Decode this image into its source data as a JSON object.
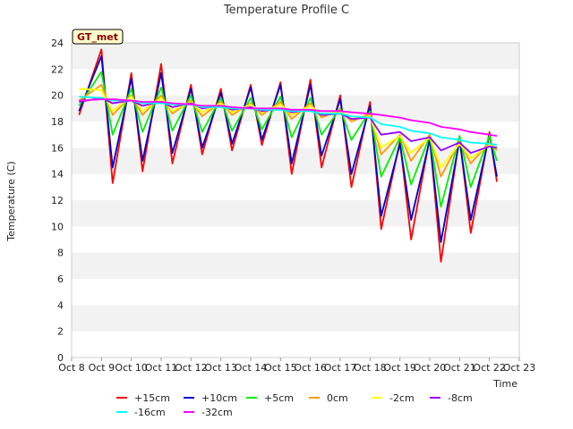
{
  "chart_data": {
    "type": "line",
    "title": "Temperature Profile C",
    "xlabel": "Time",
    "ylabel": "Temperature (C)",
    "site_label": "GT_met",
    "x_ticks": [
      "Oct 8",
      "Oct 9",
      "Oct 10",
      "Oct 11",
      "Oct 12",
      "Oct 13",
      "Oct 14",
      "Oct 15",
      "Oct 16",
      "Oct 17",
      "Oct 18",
      "Oct 19",
      "Oct 20",
      "Oct 21",
      "Oct 22",
      "Oct 23"
    ],
    "xlim": [
      "Oct 8",
      "Oct 23"
    ],
    "y_ticks": [
      0,
      2,
      4,
      6,
      8,
      10,
      12,
      14,
      16,
      18,
      20,
      22,
      24
    ],
    "ylim": [
      0,
      24
    ],
    "grid": "horizontal bands",
    "legend_position": "bottom",
    "x_dates": [
      "Oct 8 06:00",
      "Oct 9 00:00",
      "Oct 9 09:00",
      "Oct 10 00:00",
      "Oct 10 09:00",
      "Oct 11 00:00",
      "Oct 11 09:00",
      "Oct 12 00:00",
      "Oct 12 09:00",
      "Oct 13 00:00",
      "Oct 13 09:00",
      "Oct 14 00:00",
      "Oct 14 09:00",
      "Oct 15 00:00",
      "Oct 15 09:00",
      "Oct 16 00:00",
      "Oct 16 09:00",
      "Oct 17 00:00",
      "Oct 17 09:00",
      "Oct 18 00:00",
      "Oct 18 09:00",
      "Oct 19 00:00",
      "Oct 19 09:00",
      "Oct 20 00:00",
      "Oct 20 09:00",
      "Oct 21 00:00",
      "Oct 21 09:00",
      "Oct 22 00:00",
      "Oct 22 06:00"
    ],
    "series": [
      {
        "name": "+15cm",
        "color": "#ff0000",
        "values": [
          18.5,
          23.5,
          13.3,
          21.7,
          14.2,
          22.4,
          14.8,
          20.8,
          15.5,
          20.5,
          15.8,
          20.8,
          16.2,
          21.0,
          14.0,
          21.2,
          14.5,
          20.0,
          13.0,
          19.5,
          9.8,
          16.5,
          9.0,
          16.8,
          7.3,
          16.8,
          9.5,
          17.2,
          13.4
        ]
      },
      {
        "name": "+10cm",
        "color": "#0000cc",
        "values": [
          18.8,
          23.0,
          14.5,
          21.3,
          15.0,
          21.7,
          15.6,
          20.5,
          16.0,
          20.2,
          16.3,
          20.6,
          16.6,
          20.8,
          14.8,
          20.8,
          15.4,
          19.7,
          14.0,
          19.2,
          10.8,
          16.3,
          10.5,
          16.6,
          8.8,
          16.6,
          10.5,
          17.0,
          13.8
        ]
      },
      {
        "name": "+5cm",
        "color": "#00ee00",
        "values": [
          19.2,
          21.8,
          17.0,
          20.5,
          17.2,
          20.6,
          17.3,
          20.0,
          17.2,
          19.8,
          17.3,
          19.8,
          17.4,
          19.9,
          16.8,
          19.8,
          17.0,
          19.0,
          16.6,
          18.8,
          13.8,
          16.8,
          13.2,
          16.9,
          11.5,
          16.9,
          13.0,
          16.9,
          15.0
        ]
      },
      {
        "name": "0cm",
        "color": "#ff9900",
        "values": [
          19.6,
          20.8,
          18.5,
          20.0,
          18.5,
          20.0,
          18.6,
          19.6,
          18.4,
          19.5,
          18.5,
          19.4,
          18.5,
          19.5,
          18.2,
          19.4,
          18.3,
          18.9,
          18.0,
          18.6,
          15.5,
          17.0,
          15.0,
          17.0,
          13.8,
          16.5,
          14.8,
          16.4,
          15.8
        ]
      },
      {
        "name": "-2cm",
        "color": "#ffff00",
        "values": [
          20.5,
          20.4,
          18.8,
          19.9,
          18.8,
          19.8,
          18.8,
          19.5,
          18.7,
          19.4,
          18.7,
          19.3,
          18.7,
          19.3,
          18.5,
          19.2,
          18.5,
          18.8,
          18.2,
          18.4,
          16.0,
          16.9,
          15.6,
          16.8,
          14.5,
          16.3,
          15.2,
          16.2,
          16.0
        ]
      },
      {
        "name": "-8cm",
        "color": "#9900ff",
        "values": [
          19.5,
          19.8,
          19.4,
          19.6,
          19.2,
          19.5,
          19.1,
          19.4,
          19.0,
          19.2,
          18.9,
          19.1,
          18.8,
          19.0,
          18.7,
          18.9,
          18.5,
          18.6,
          18.2,
          18.3,
          17.0,
          17.2,
          16.5,
          16.8,
          15.8,
          16.4,
          15.6,
          16.1,
          16.0
        ]
      },
      {
        "name": "-16cm",
        "color": "#00ffff",
        "values": [
          19.9,
          19.8,
          19.6,
          19.6,
          19.4,
          19.4,
          19.3,
          19.3,
          19.1,
          19.1,
          19.0,
          19.0,
          18.9,
          18.9,
          18.8,
          18.8,
          18.6,
          18.6,
          18.4,
          18.3,
          17.8,
          17.6,
          17.3,
          17.1,
          16.8,
          16.6,
          16.4,
          16.3,
          16.2
        ]
      },
      {
        "name": "-32cm",
        "color": "#ff00ff",
        "values": [
          19.6,
          19.7,
          19.7,
          19.6,
          19.5,
          19.5,
          19.4,
          19.3,
          19.2,
          19.2,
          19.1,
          19.0,
          19.0,
          19.0,
          18.9,
          18.9,
          18.8,
          18.8,
          18.7,
          18.6,
          18.5,
          18.3,
          18.1,
          17.9,
          17.6,
          17.4,
          17.2,
          17.0,
          16.9
        ]
      }
    ]
  }
}
